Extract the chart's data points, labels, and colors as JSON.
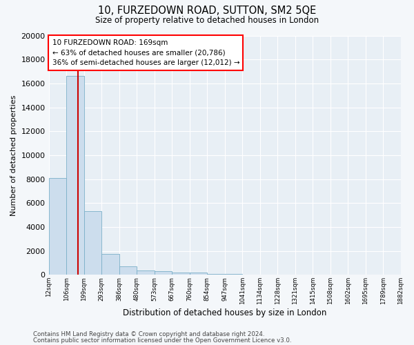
{
  "title": "10, FURZEDOWN ROAD, SUTTON, SM2 5QE",
  "subtitle": "Size of property relative to detached houses in London",
  "xlabel": "Distribution of detached houses by size in London",
  "ylabel": "Number of detached properties",
  "bin_labels": [
    "12sqm",
    "106sqm",
    "199sqm",
    "293sqm",
    "386sqm",
    "480sqm",
    "573sqm",
    "667sqm",
    "760sqm",
    "854sqm",
    "947sqm",
    "1041sqm",
    "1134sqm",
    "1228sqm",
    "1321sqm",
    "1415sqm",
    "1508sqm",
    "1602sqm",
    "1695sqm",
    "1789sqm",
    "1882sqm"
  ],
  "bin_edges": [
    12,
    106,
    199,
    293,
    386,
    480,
    573,
    667,
    760,
    854,
    947,
    1041,
    1134,
    1228,
    1321,
    1415,
    1508,
    1602,
    1695,
    1789,
    1882
  ],
  "bar_heights": [
    8100,
    16600,
    5300,
    1750,
    700,
    350,
    280,
    200,
    180,
    100,
    50,
    20,
    15,
    10,
    8,
    5,
    4,
    3,
    2,
    1
  ],
  "bar_color": "#ccdded",
  "bar_edgecolor": "#7aafc8",
  "property_size": 169,
  "property_label": "10 FURZEDOWN ROAD: 169sqm",
  "annotation_line1": "← 63% of detached houses are smaller (20,786)",
  "annotation_line2": "36% of semi-detached houses are larger (12,012) →",
  "marker_color": "#cc0000",
  "ylim": [
    0,
    20000
  ],
  "yticks": [
    0,
    2000,
    4000,
    6000,
    8000,
    10000,
    12000,
    14000,
    16000,
    18000,
    20000
  ],
  "footer_line1": "Contains HM Land Registry data © Crown copyright and database right 2024.",
  "footer_line2": "Contains public sector information licensed under the Open Government Licence v3.0.",
  "bg_color": "#f4f7fa",
  "plot_bg_color": "#e8eff5"
}
